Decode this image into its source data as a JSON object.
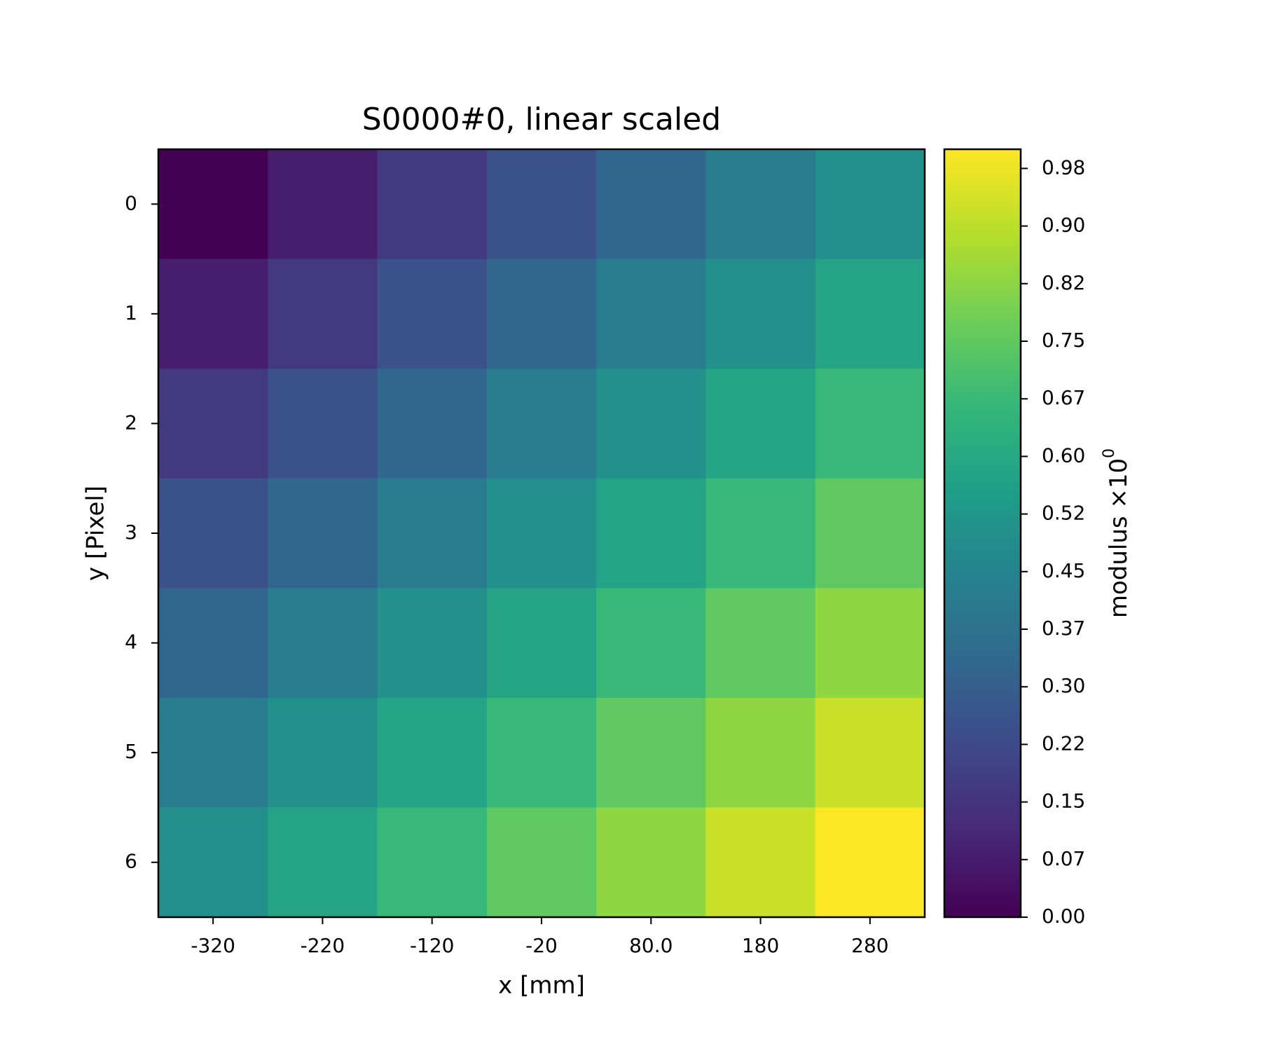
{
  "chart_data": {
    "type": "heatmap",
    "title": "S0000#0, linear scaled",
    "xlabel": "x [mm]",
    "ylabel": "y [Pixel]",
    "colorbar_label": "modulus ×10",
    "colorbar_exponent": "0",
    "colormap": "viridis",
    "x": [
      -320,
      -220,
      -120,
      -20,
      80,
      180,
      280
    ],
    "y": [
      0,
      1,
      2,
      3,
      4,
      5,
      6
    ],
    "z": [
      [
        0,
        0.08,
        0.17,
        0.25,
        0.33,
        0.42,
        0.5
      ],
      [
        0.08,
        0.17,
        0.25,
        0.33,
        0.42,
        0.5,
        0.58
      ],
      [
        0.17,
        0.25,
        0.33,
        0.42,
        0.5,
        0.58,
        0.67
      ],
      [
        0.25,
        0.33,
        0.42,
        0.5,
        0.58,
        0.67,
        0.75
      ],
      [
        0.33,
        0.42,
        0.5,
        0.58,
        0.67,
        0.75,
        0.83
      ],
      [
        0.42,
        0.5,
        0.58,
        0.67,
        0.75,
        0.83,
        0.92
      ],
      [
        0.5,
        0.58,
        0.67,
        0.75,
        0.83,
        0.92,
        1
      ]
    ],
    "xlim": [
      -370,
      330
    ],
    "xticks": [
      -320,
      -220,
      -120,
      -20,
      {
        "value": 80,
        "label": "80.0"
      },
      180,
      280
    ],
    "ylim": [
      6.5,
      -0.5
    ],
    "yticks": [
      0,
      1,
      2,
      3,
      4,
      5,
      6
    ],
    "clim": [
      0,
      1
    ],
    "cticks": [
      {
        "value": 0,
        "label": "0.00"
      },
      {
        "value": 0.075,
        "label": "0.07"
      },
      {
        "value": 0.15,
        "label": "0.15"
      },
      {
        "value": 0.225,
        "label": "0.22"
      },
      {
        "value": 0.3,
        "label": "0.30"
      },
      {
        "value": 0.375,
        "label": "0.37"
      },
      {
        "value": 0.45,
        "label": "0.45"
      },
      {
        "value": 0.525,
        "label": "0.52"
      },
      {
        "value": 0.6,
        "label": "0.60"
      },
      {
        "value": 0.675,
        "label": "0.67"
      },
      {
        "value": 0.75,
        "label": "0.75"
      },
      {
        "value": 0.825,
        "label": "0.82"
      },
      {
        "value": 0.9,
        "label": "0.90"
      },
      {
        "value": 0.975,
        "label": "0.98"
      }
    ]
  }
}
